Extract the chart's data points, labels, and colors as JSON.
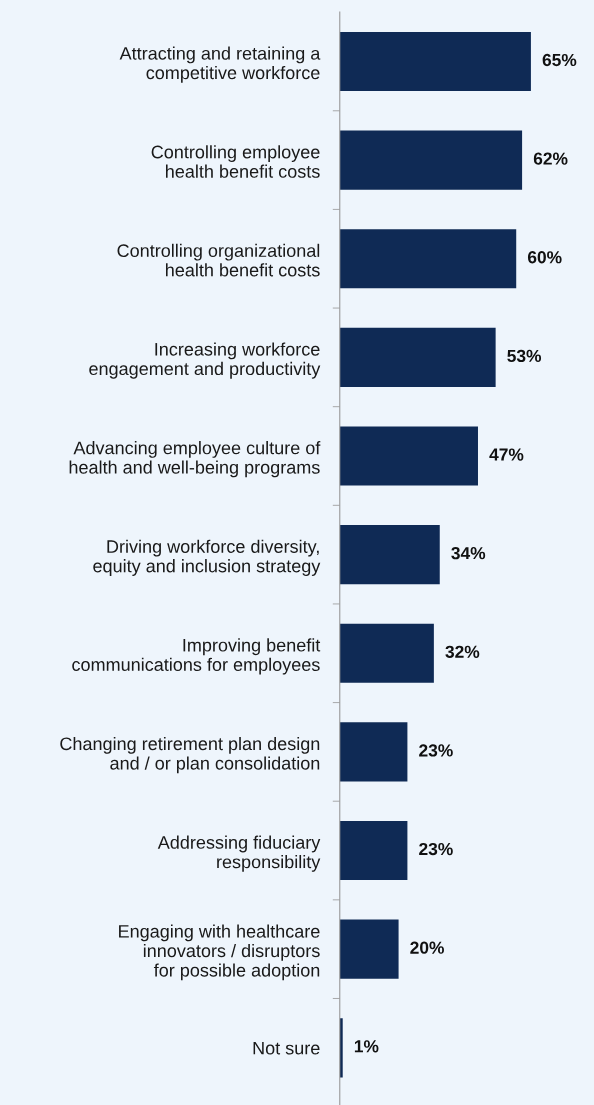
{
  "chart_data": {
    "type": "bar",
    "orientation": "horizontal",
    "categories": [
      "Attracting and retaining a\ncompetitive workforce",
      "Controlling employee\nhealth benefit costs",
      "Controlling organizational\nhealth benefit costs",
      "Increasing workforce\nengagement and productivity",
      "Advancing employee culture of\nhealth and well-being programs",
      "Driving workforce diversity,\nequity and inclusion strategy",
      "Improving benefit\ncommunications for employees",
      "Changing retirement plan design\nand / or plan consolidation",
      "Addressing fiduciary\nresponsibility",
      "Engaging with healthcare\ninnovators / disruptors\nfor possible adoption",
      "Not sure"
    ],
    "values": [
      65,
      62,
      60,
      53,
      47,
      34,
      32,
      23,
      23,
      20,
      1
    ],
    "value_labels": [
      "65%",
      "62%",
      "60%",
      "53%",
      "47%",
      "34%",
      "32%",
      "23%",
      "23%",
      "20%",
      "1%"
    ],
    "color": "#0f2a55",
    "tick_labels": "y",
    "grid": false,
    "legend": false
  }
}
